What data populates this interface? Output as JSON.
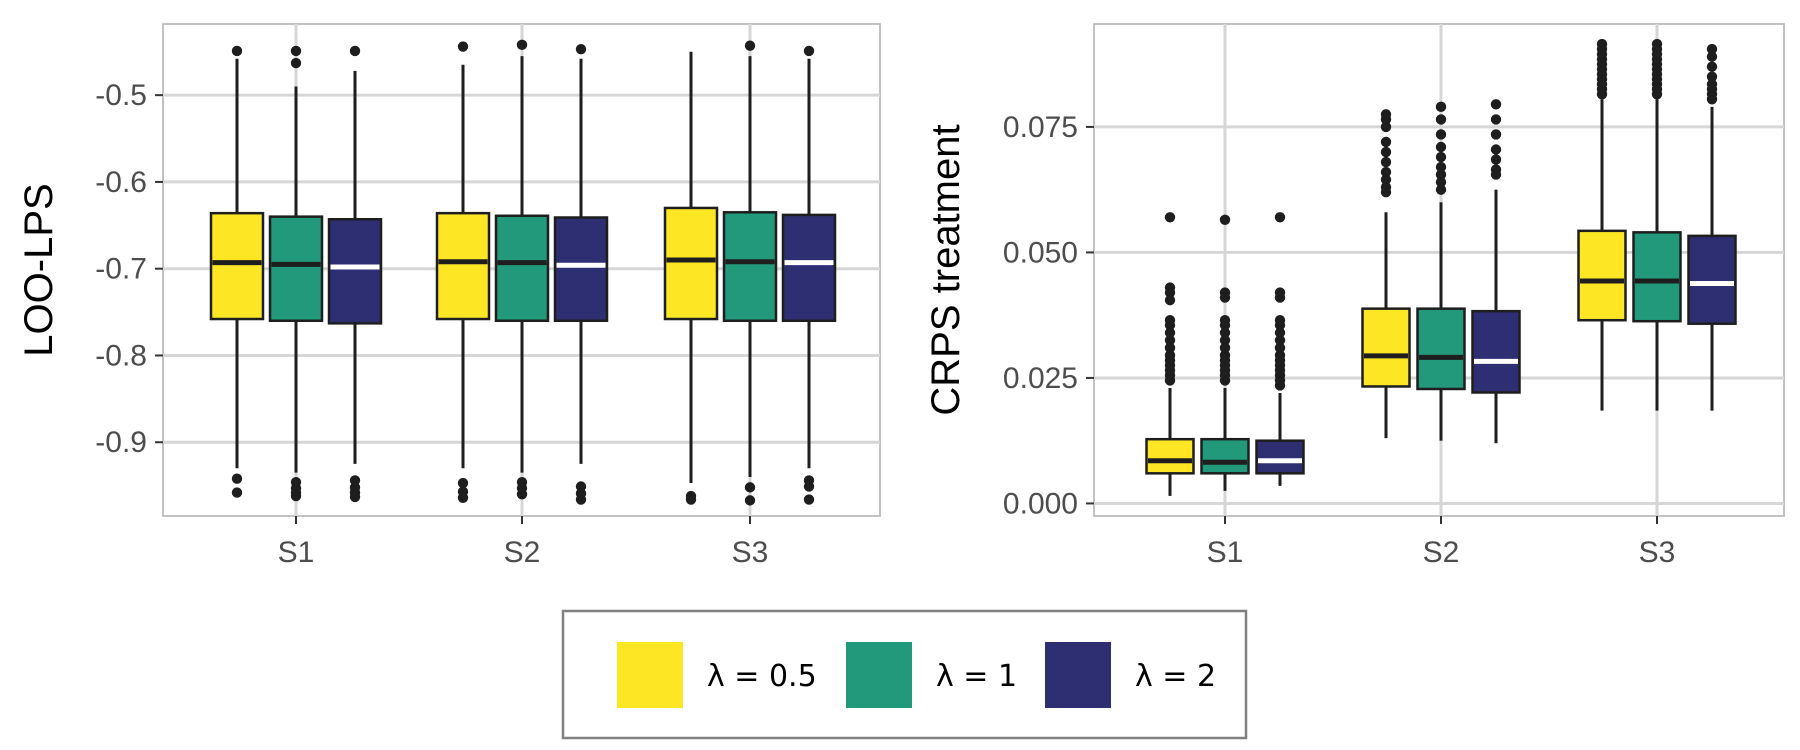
{
  "colors": {
    "yellow": "#fde725",
    "green": "#21997a",
    "navy": "#2e2e72",
    "box_outline": "#1e1e1e",
    "outlier": "#1e1e1e"
  },
  "legend": {
    "items": [
      {
        "label": "λ = 0.5",
        "color": "#fde725",
        "median_color": "#1e1e1e"
      },
      {
        "label": "λ = 1",
        "color": "#21997a",
        "median_color": "#1e1e1e"
      },
      {
        "label": "λ = 2",
        "color": "#2e2e72",
        "median_color": "#ffffff"
      }
    ]
  },
  "chart_data": [
    {
      "type": "boxplot",
      "ylabel": "LOO-LPS",
      "xlabel": "",
      "categories": [
        "S1",
        "S2",
        "S3"
      ],
      "ylim": [
        -0.985,
        -0.418
      ],
      "yticks": [
        -0.9,
        -0.8,
        -0.7,
        -0.6,
        -0.5
      ],
      "ytick_labels": [
        "-0.9",
        "-0.8",
        "-0.7",
        "-0.6",
        "-0.5"
      ],
      "grid": true,
      "series": [
        {
          "name": "λ = 0.5",
          "boxes": [
            {
              "min": -0.93,
              "q1": -0.758,
              "median": -0.693,
              "q3": -0.636,
              "max": -0.458,
              "outliers": [
                -0.449,
                -0.942,
                -0.958
              ]
            },
            {
              "min": -0.93,
              "q1": -0.758,
              "median": -0.692,
              "q3": -0.636,
              "max": -0.465,
              "outliers": [
                -0.444,
                -0.947,
                -0.957,
                -0.964
              ]
            },
            {
              "min": -0.947,
              "q1": -0.758,
              "median": -0.69,
              "q3": -0.63,
              "max": -0.45,
              "outliers": [
                -0.962,
                -0.966
              ]
            }
          ]
        },
        {
          "name": "λ = 1",
          "boxes": [
            {
              "min": -0.935,
              "q1": -0.76,
              "median": -0.695,
              "q3": -0.64,
              "max": -0.49,
              "outliers": [
                -0.449,
                -0.463,
                -0.946,
                -0.953,
                -0.958,
                -0.962
              ]
            },
            {
              "min": -0.935,
              "q1": -0.76,
              "median": -0.693,
              "q3": -0.639,
              "max": -0.455,
              "outliers": [
                -0.442,
                -0.946,
                -0.953,
                -0.96
              ]
            },
            {
              "min": -0.94,
              "q1": -0.76,
              "median": -0.692,
              "q3": -0.635,
              "max": -0.455,
              "outliers": [
                -0.443,
                -0.952,
                -0.967
              ]
            }
          ]
        },
        {
          "name": "λ = 2",
          "boxes": [
            {
              "min": -0.925,
              "q1": -0.763,
              "median": -0.698,
              "q3": -0.643,
              "max": -0.472,
              "outliers": [
                -0.449,
                -0.944,
                -0.952,
                -0.958,
                -0.963
              ]
            },
            {
              "min": -0.925,
              "q1": -0.76,
              "median": -0.696,
              "q3": -0.641,
              "max": -0.458,
              "outliers": [
                -0.447,
                -0.951,
                -0.959,
                -0.966
              ]
            },
            {
              "min": -0.93,
              "q1": -0.76,
              "median": -0.693,
              "q3": -0.638,
              "max": -0.458,
              "outliers": [
                -0.449,
                -0.944,
                -0.951,
                -0.966
              ]
            }
          ]
        }
      ]
    },
    {
      "type": "boxplot",
      "ylabel": "CRPS treatment",
      "xlabel": "",
      "categories": [
        "S1",
        "S2",
        "S3"
      ],
      "ylim": [
        -0.0025,
        0.0955
      ],
      "yticks": [
        0.0,
        0.025,
        0.05,
        0.075
      ],
      "ytick_labels": [
        "0.000",
        "0.025",
        "0.050",
        "0.075"
      ],
      "grid": true,
      "series": [
        {
          "name": "λ = 0.5",
          "boxes": [
            {
              "min": 0.0015,
              "q1": 0.006,
              "median": 0.0085,
              "q3": 0.0128,
              "max": 0.023,
              "outliers": [
                0.0245,
                0.0255,
                0.0265,
                0.0275,
                0.0285,
                0.0295,
                0.031,
                0.0325,
                0.034,
                0.0355,
                0.0365,
                0.0405,
                0.042,
                0.043,
                0.057
              ]
            },
            {
              "min": 0.013,
              "q1": 0.0233,
              "median": 0.0294,
              "q3": 0.0388,
              "max": 0.058,
              "outliers": [
                0.062,
                0.063,
                0.0645,
                0.066,
                0.068,
                0.07,
                0.072,
                0.075,
                0.0765,
                0.0775
              ]
            },
            {
              "min": 0.0185,
              "q1": 0.0365,
              "median": 0.0443,
              "q3": 0.0543,
              "max": 0.0805,
              "outliers": [
                0.0815,
                0.0825,
                0.0835,
                0.0845,
                0.0855,
                0.0865,
                0.0875,
                0.0885,
                0.0895,
                0.0905,
                0.0915
              ]
            }
          ]
        },
        {
          "name": "λ = 1",
          "boxes": [
            {
              "min": 0.0025,
              "q1": 0.006,
              "median": 0.0082,
              "q3": 0.0128,
              "max": 0.023,
              "outliers": [
                0.0245,
                0.0255,
                0.0265,
                0.0275,
                0.0285,
                0.0295,
                0.031,
                0.0325,
                0.034,
                0.0355,
                0.0365,
                0.041,
                0.042,
                0.0565
              ]
            },
            {
              "min": 0.0125,
              "q1": 0.0228,
              "median": 0.0291,
              "q3": 0.0388,
              "max": 0.06,
              "outliers": [
                0.0625,
                0.064,
                0.0655,
                0.067,
                0.069,
                0.071,
                0.0735,
                0.0765,
                0.079
              ]
            },
            {
              "min": 0.0185,
              "q1": 0.0363,
              "median": 0.0443,
              "q3": 0.054,
              "max": 0.0805,
              "outliers": [
                0.0815,
                0.0825,
                0.0835,
                0.0845,
                0.0855,
                0.0865,
                0.0875,
                0.0885,
                0.0895,
                0.0905,
                0.0915
              ]
            }
          ]
        },
        {
          "name": "λ = 2",
          "boxes": [
            {
              "min": 0.0035,
              "q1": 0.006,
              "median": 0.0085,
              "q3": 0.0125,
              "max": 0.022,
              "outliers": [
                0.0235,
                0.0245,
                0.0255,
                0.0265,
                0.0275,
                0.0285,
                0.0295,
                0.031,
                0.0325,
                0.034,
                0.0355,
                0.0365,
                0.041,
                0.042,
                0.057
              ]
            },
            {
              "min": 0.012,
              "q1": 0.0221,
              "median": 0.0283,
              "q3": 0.0383,
              "max": 0.0625,
              "outliers": [
                0.0655,
                0.0665,
                0.0685,
                0.0705,
                0.0735,
                0.0765,
                0.0795
              ]
            },
            {
              "min": 0.0185,
              "q1": 0.0358,
              "median": 0.0438,
              "q3": 0.0533,
              "max": 0.079,
              "outliers": [
                0.0805,
                0.0815,
                0.0825,
                0.0835,
                0.085,
                0.087,
                0.089,
                0.0905
              ]
            }
          ]
        }
      ]
    }
  ]
}
